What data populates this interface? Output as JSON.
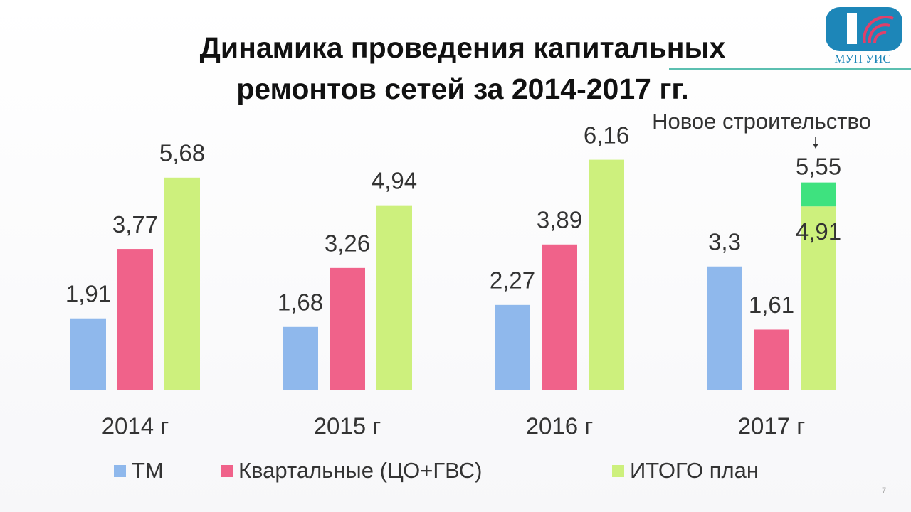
{
  "chart_data": {
    "type": "bar",
    "title": [
      "Динамика проведения капитальных",
      "ремонтов сетей за 2014-2017 гг."
    ],
    "categories": [
      "2014 г",
      "2015 г",
      "2016 г",
      "2017 г"
    ],
    "series": [
      {
        "name": "ТМ",
        "color": "#8fb8ec",
        "values": [
          1.91,
          1.68,
          2.27,
          3.3
        ],
        "value_labels": [
          "1,91",
          "1,68",
          "2,27",
          "3,3"
        ]
      },
      {
        "name": "Квартальные (ЦО+ГВС)",
        "color": "#f0628a",
        "values": [
          3.77,
          3.26,
          3.89,
          1.61
        ],
        "value_labels": [
          "3,77",
          "3,26",
          "3,89",
          "1,61"
        ]
      },
      {
        "name": "ИТОГО план",
        "color": "#cdf07d",
        "values": [
          5.68,
          4.94,
          6.16,
          5.55
        ],
        "value_labels": [
          "5,68",
          "4,94",
          "6,16",
          "5,55"
        ]
      }
    ],
    "breakdown": {
      "series": 2,
      "index": 3,
      "base": 4.91,
      "base_label": "4,91",
      "label": "Новое строительство",
      "color": "#3ee27f"
    },
    "ylim": [
      0,
      7
    ],
    "grid": false,
    "legend": "bottom"
  },
  "logo": "МУП УИС",
  "page_number": "7"
}
